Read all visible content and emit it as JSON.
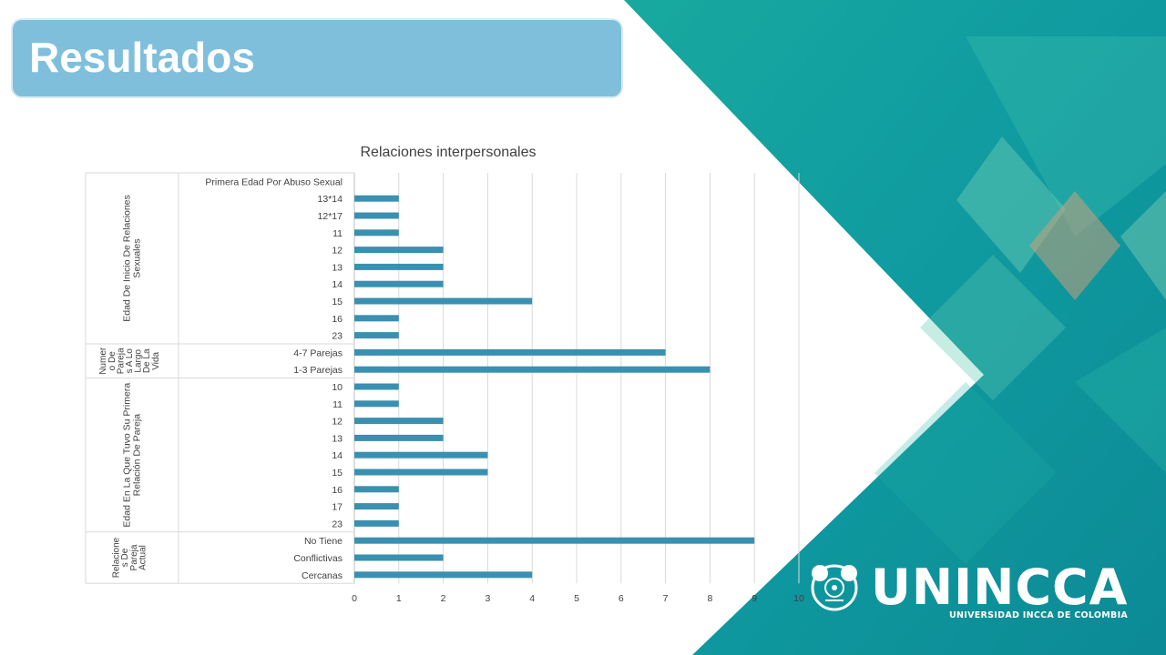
{
  "slide": {
    "title": "Resultados"
  },
  "colors": {
    "bar": "#3a90b0",
    "teal_dark": "#0e8f98",
    "teal_light": "#1bb3a6",
    "title_box": "#7fbfdc"
  },
  "chart_data": {
    "type": "bar",
    "orientation": "horizontal",
    "title": "Relaciones interpersonales",
    "xlim": [
      0,
      10
    ],
    "x_ticks": [
      "0",
      "1",
      "2",
      "3",
      "4",
      "5",
      "6",
      "7",
      "8",
      "9",
      "10"
    ],
    "grid": true,
    "groups": [
      {
        "label": "Edad De Inicio De Relaciones Sexuales",
        "categories": [
          "Primera Edad Por Abuso Sexual",
          "13*14",
          "12*17",
          "11",
          "12",
          "13",
          "14",
          "15",
          "16",
          "23"
        ],
        "values": [
          0,
          1,
          1,
          1,
          2,
          2,
          2,
          4,
          1,
          1
        ]
      },
      {
        "label": "Numero De Parejas A Lo Largo De La Vida",
        "label_lines": [
          "Numer",
          "o De",
          "Pareja",
          "s A Lo",
          "Largo",
          "De La",
          "Vida"
        ],
        "categories": [
          "4-7 Parejas",
          "1-3 Parejas"
        ],
        "values": [
          7,
          8
        ]
      },
      {
        "label": "Edad En La Que Tuvo Su Primera Relación De Pareja",
        "categories": [
          "10",
          "11",
          "12",
          "13",
          "14",
          "15",
          "16",
          "17",
          "23"
        ],
        "values": [
          1,
          1,
          2,
          2,
          3,
          3,
          1,
          1,
          1
        ]
      },
      {
        "label": "Relaciones De Pareja Actual",
        "label_lines": [
          "Relacione",
          "s De",
          "Pareja",
          "Actual"
        ],
        "categories": [
          "No Tiene",
          "Conflictivas",
          "Cercanas"
        ],
        "values": [
          9,
          2,
          4
        ]
      }
    ]
  },
  "logo": {
    "name": "UNINCCA",
    "subtitle": "UNIVERSIDAD INCCA DE COLOMBIA",
    "icon": "incca-emblem-icon"
  }
}
